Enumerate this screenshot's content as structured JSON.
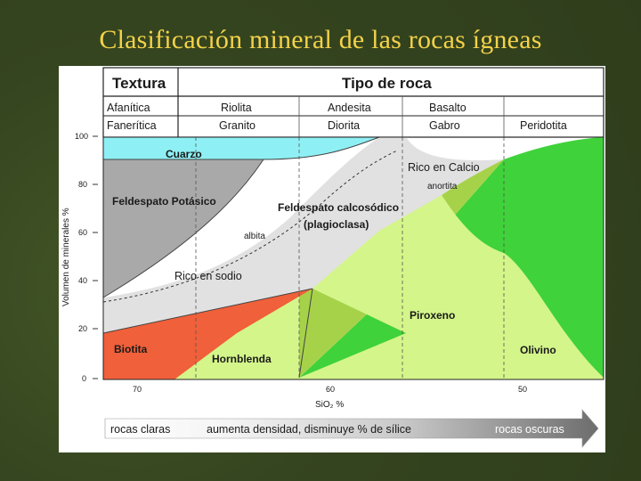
{
  "slide": {
    "title": "Clasificación mineral de las rocas ígneas"
  },
  "header": {
    "texture_title": "Textura",
    "rock_type_title": "Tipo de roca",
    "row_afanitica": {
      "texture": "Afanítica",
      "rocks": [
        "Riolita",
        "Andesita",
        "Basalto"
      ]
    },
    "row_faneritica": {
      "texture": "Fanerítica",
      "rocks": [
        "Granito",
        "Diorita",
        "Gabro",
        "Peridotita"
      ]
    }
  },
  "y_axis": {
    "label": "Volumen de minerales %",
    "ticks": [
      "100",
      "80",
      "60",
      "40",
      "20",
      "0"
    ]
  },
  "x_axis": {
    "label": "SiO₂ %",
    "ticks": [
      "70",
      "60",
      "50"
    ]
  },
  "fields": {
    "cuarzo": "Cuarzo",
    "feldespato_potasico": "Feldespato Potásico",
    "feldespato_calcosodico": "Feldespato calcosódico",
    "plagioclasa": "(plagioclasa)",
    "rico_calcio": "Rico en Calcio",
    "anortita": "anortita",
    "albita": "albita",
    "rico_sodio": "Rico en sodio",
    "piroxeno": "Piroxeno",
    "biotita": "Biotita",
    "hornblenda": "Hornblenda",
    "olivino": "Olivino"
  },
  "bottom_bar": {
    "left": "rocas claras",
    "middle": "aumenta densidad, disminuye % de sílice",
    "right": "rocas oscuras"
  },
  "colors": {
    "cuarzo": "#8ef0f4",
    "feldespato_potasico": "#a9a9a9",
    "plagioclasa": "#e1e1e1",
    "biotita": "#f0603a",
    "hornblenda": "#d4f58a",
    "piroxeno": "#a6d24a",
    "olivino": "#3fd23a"
  }
}
